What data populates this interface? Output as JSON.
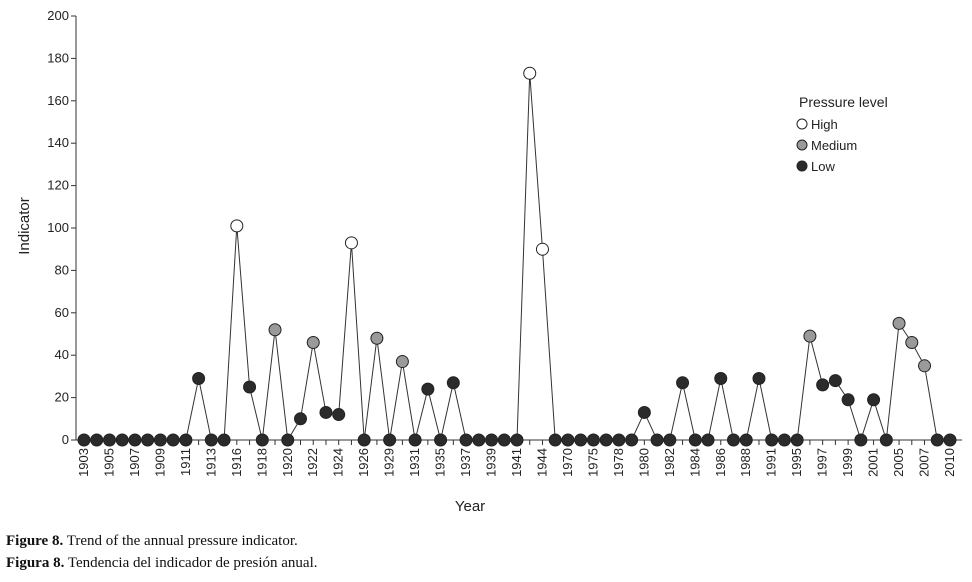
{
  "chart_data": {
    "type": "line",
    "title": "",
    "xlabel": "Year",
    "ylabel": "Indicator",
    "ylim": [
      0,
      200
    ],
    "yticks": [
      0,
      20,
      40,
      60,
      80,
      100,
      120,
      140,
      160,
      180,
      200
    ],
    "grid": false,
    "legend": {
      "title": "Pressure level",
      "placement": "top-right",
      "entries": [
        {
          "key": "high",
          "label": "High"
        },
        {
          "key": "medium",
          "label": "Medium"
        },
        {
          "key": "low",
          "label": "Low"
        }
      ]
    },
    "level_colors": {
      "high": "#ffffff",
      "medium": "#9a9a9a",
      "low": "#2b2b2b"
    },
    "points": [
      {
        "x": "1903",
        "y": 0,
        "level": "low"
      },
      {
        "x": "1904",
        "y": 0,
        "level": "low"
      },
      {
        "x": "1905",
        "y": 0,
        "level": "low"
      },
      {
        "x": "1906",
        "y": 0,
        "level": "low"
      },
      {
        "x": "1907",
        "y": 0,
        "level": "low"
      },
      {
        "x": "1908",
        "y": 0,
        "level": "low"
      },
      {
        "x": "1909",
        "y": 0,
        "level": "low"
      },
      {
        "x": "1910",
        "y": 0,
        "level": "low"
      },
      {
        "x": "1911",
        "y": 0,
        "level": "low"
      },
      {
        "x": "1912",
        "y": 29,
        "level": "low"
      },
      {
        "x": "1913",
        "y": 0,
        "level": "low"
      },
      {
        "x": "1915",
        "y": 0,
        "level": "low"
      },
      {
        "x": "1916",
        "y": 101,
        "level": "high"
      },
      {
        "x": "1917",
        "y": 25,
        "level": "low"
      },
      {
        "x": "1918",
        "y": 0,
        "level": "low"
      },
      {
        "x": "1919",
        "y": 52,
        "level": "medium"
      },
      {
        "x": "1920",
        "y": 0,
        "level": "low"
      },
      {
        "x": "1921",
        "y": 10,
        "level": "low"
      },
      {
        "x": "1922",
        "y": 46,
        "level": "medium"
      },
      {
        "x": "1923",
        "y": 13,
        "level": "low"
      },
      {
        "x": "1924",
        "y": 12,
        "level": "low"
      },
      {
        "x": "1925",
        "y": 93,
        "level": "high"
      },
      {
        "x": "1926",
        "y": 0,
        "level": "low"
      },
      {
        "x": "1928",
        "y": 48,
        "level": "medium"
      },
      {
        "x": "1929",
        "y": 0,
        "level": "low"
      },
      {
        "x": "1930",
        "y": 37,
        "level": "medium"
      },
      {
        "x": "1931",
        "y": 0,
        "level": "low"
      },
      {
        "x": "1933",
        "y": 24,
        "level": "low"
      },
      {
        "x": "1935",
        "y": 0,
        "level": "low"
      },
      {
        "x": "1936",
        "y": 27,
        "level": "low"
      },
      {
        "x": "1937",
        "y": 0,
        "level": "low"
      },
      {
        "x": "1938",
        "y": 0,
        "level": "low"
      },
      {
        "x": "1939",
        "y": 0,
        "level": "low"
      },
      {
        "x": "1940",
        "y": 0,
        "level": "low"
      },
      {
        "x": "1941",
        "y": 0,
        "level": "low"
      },
      {
        "x": "1943",
        "y": 173,
        "level": "high"
      },
      {
        "x": "1944",
        "y": 90,
        "level": "high"
      },
      {
        "x": "1969",
        "y": 0,
        "level": "low"
      },
      {
        "x": "1970",
        "y": 0,
        "level": "low"
      },
      {
        "x": "1972",
        "y": 0,
        "level": "low"
      },
      {
        "x": "1975",
        "y": 0,
        "level": "low"
      },
      {
        "x": "1976",
        "y": 0,
        "level": "low"
      },
      {
        "x": "1978",
        "y": 0,
        "level": "low"
      },
      {
        "x": "1979",
        "y": 0,
        "level": "low"
      },
      {
        "x": "1980",
        "y": 13,
        "level": "low"
      },
      {
        "x": "1981",
        "y": 0,
        "level": "low"
      },
      {
        "x": "1982",
        "y": 0,
        "level": "low"
      },
      {
        "x": "1983",
        "y": 27,
        "level": "low"
      },
      {
        "x": "1984",
        "y": 0,
        "level": "low"
      },
      {
        "x": "1985",
        "y": 0,
        "level": "low"
      },
      {
        "x": "1986",
        "y": 29,
        "level": "low"
      },
      {
        "x": "1987",
        "y": 0,
        "level": "low"
      },
      {
        "x": "1988",
        "y": 0,
        "level": "low"
      },
      {
        "x": "1989",
        "y": 29,
        "level": "low"
      },
      {
        "x": "1991",
        "y": 0,
        "level": "low"
      },
      {
        "x": "1993",
        "y": 0,
        "level": "low"
      },
      {
        "x": "1995",
        "y": 0,
        "level": "low"
      },
      {
        "x": "1996",
        "y": 49,
        "level": "medium"
      },
      {
        "x": "1997",
        "y": 26,
        "level": "low"
      },
      {
        "x": "1998",
        "y": 28,
        "level": "low"
      },
      {
        "x": "1999",
        "y": 19,
        "level": "low"
      },
      {
        "x": "2000",
        "y": 0,
        "level": "low"
      },
      {
        "x": "2001",
        "y": 19,
        "level": "low"
      },
      {
        "x": "2003",
        "y": 0,
        "level": "low"
      },
      {
        "x": "2005",
        "y": 55,
        "level": "medium"
      },
      {
        "x": "2006",
        "y": 46,
        "level": "medium"
      },
      {
        "x": "2007",
        "y": 35,
        "level": "medium"
      },
      {
        "x": "2008",
        "y": 0,
        "level": "low"
      },
      {
        "x": "2010",
        "y": 0,
        "level": "low"
      }
    ],
    "x_tick_labels": [
      "1903",
      "1905",
      "1907",
      "1909",
      "1911",
      "1913",
      "1916",
      "1918",
      "1920",
      "1922",
      "1924",
      "1926",
      "1929",
      "1931",
      "1935",
      "1937",
      "1939",
      "1941",
      "1944",
      "1970",
      "1975",
      "1978",
      "1980",
      "1982",
      "1984",
      "1986",
      "1988",
      "1991",
      "1995",
      "1997",
      "1999",
      "2001",
      "2005",
      "2007",
      "2010"
    ]
  },
  "captions": [
    {
      "label": "Figure 8.",
      "text": " Trend of the annual pressure indicator."
    },
    {
      "label": "Figura 8.",
      "text": " Tendencia del indicador de presión anual."
    }
  ]
}
